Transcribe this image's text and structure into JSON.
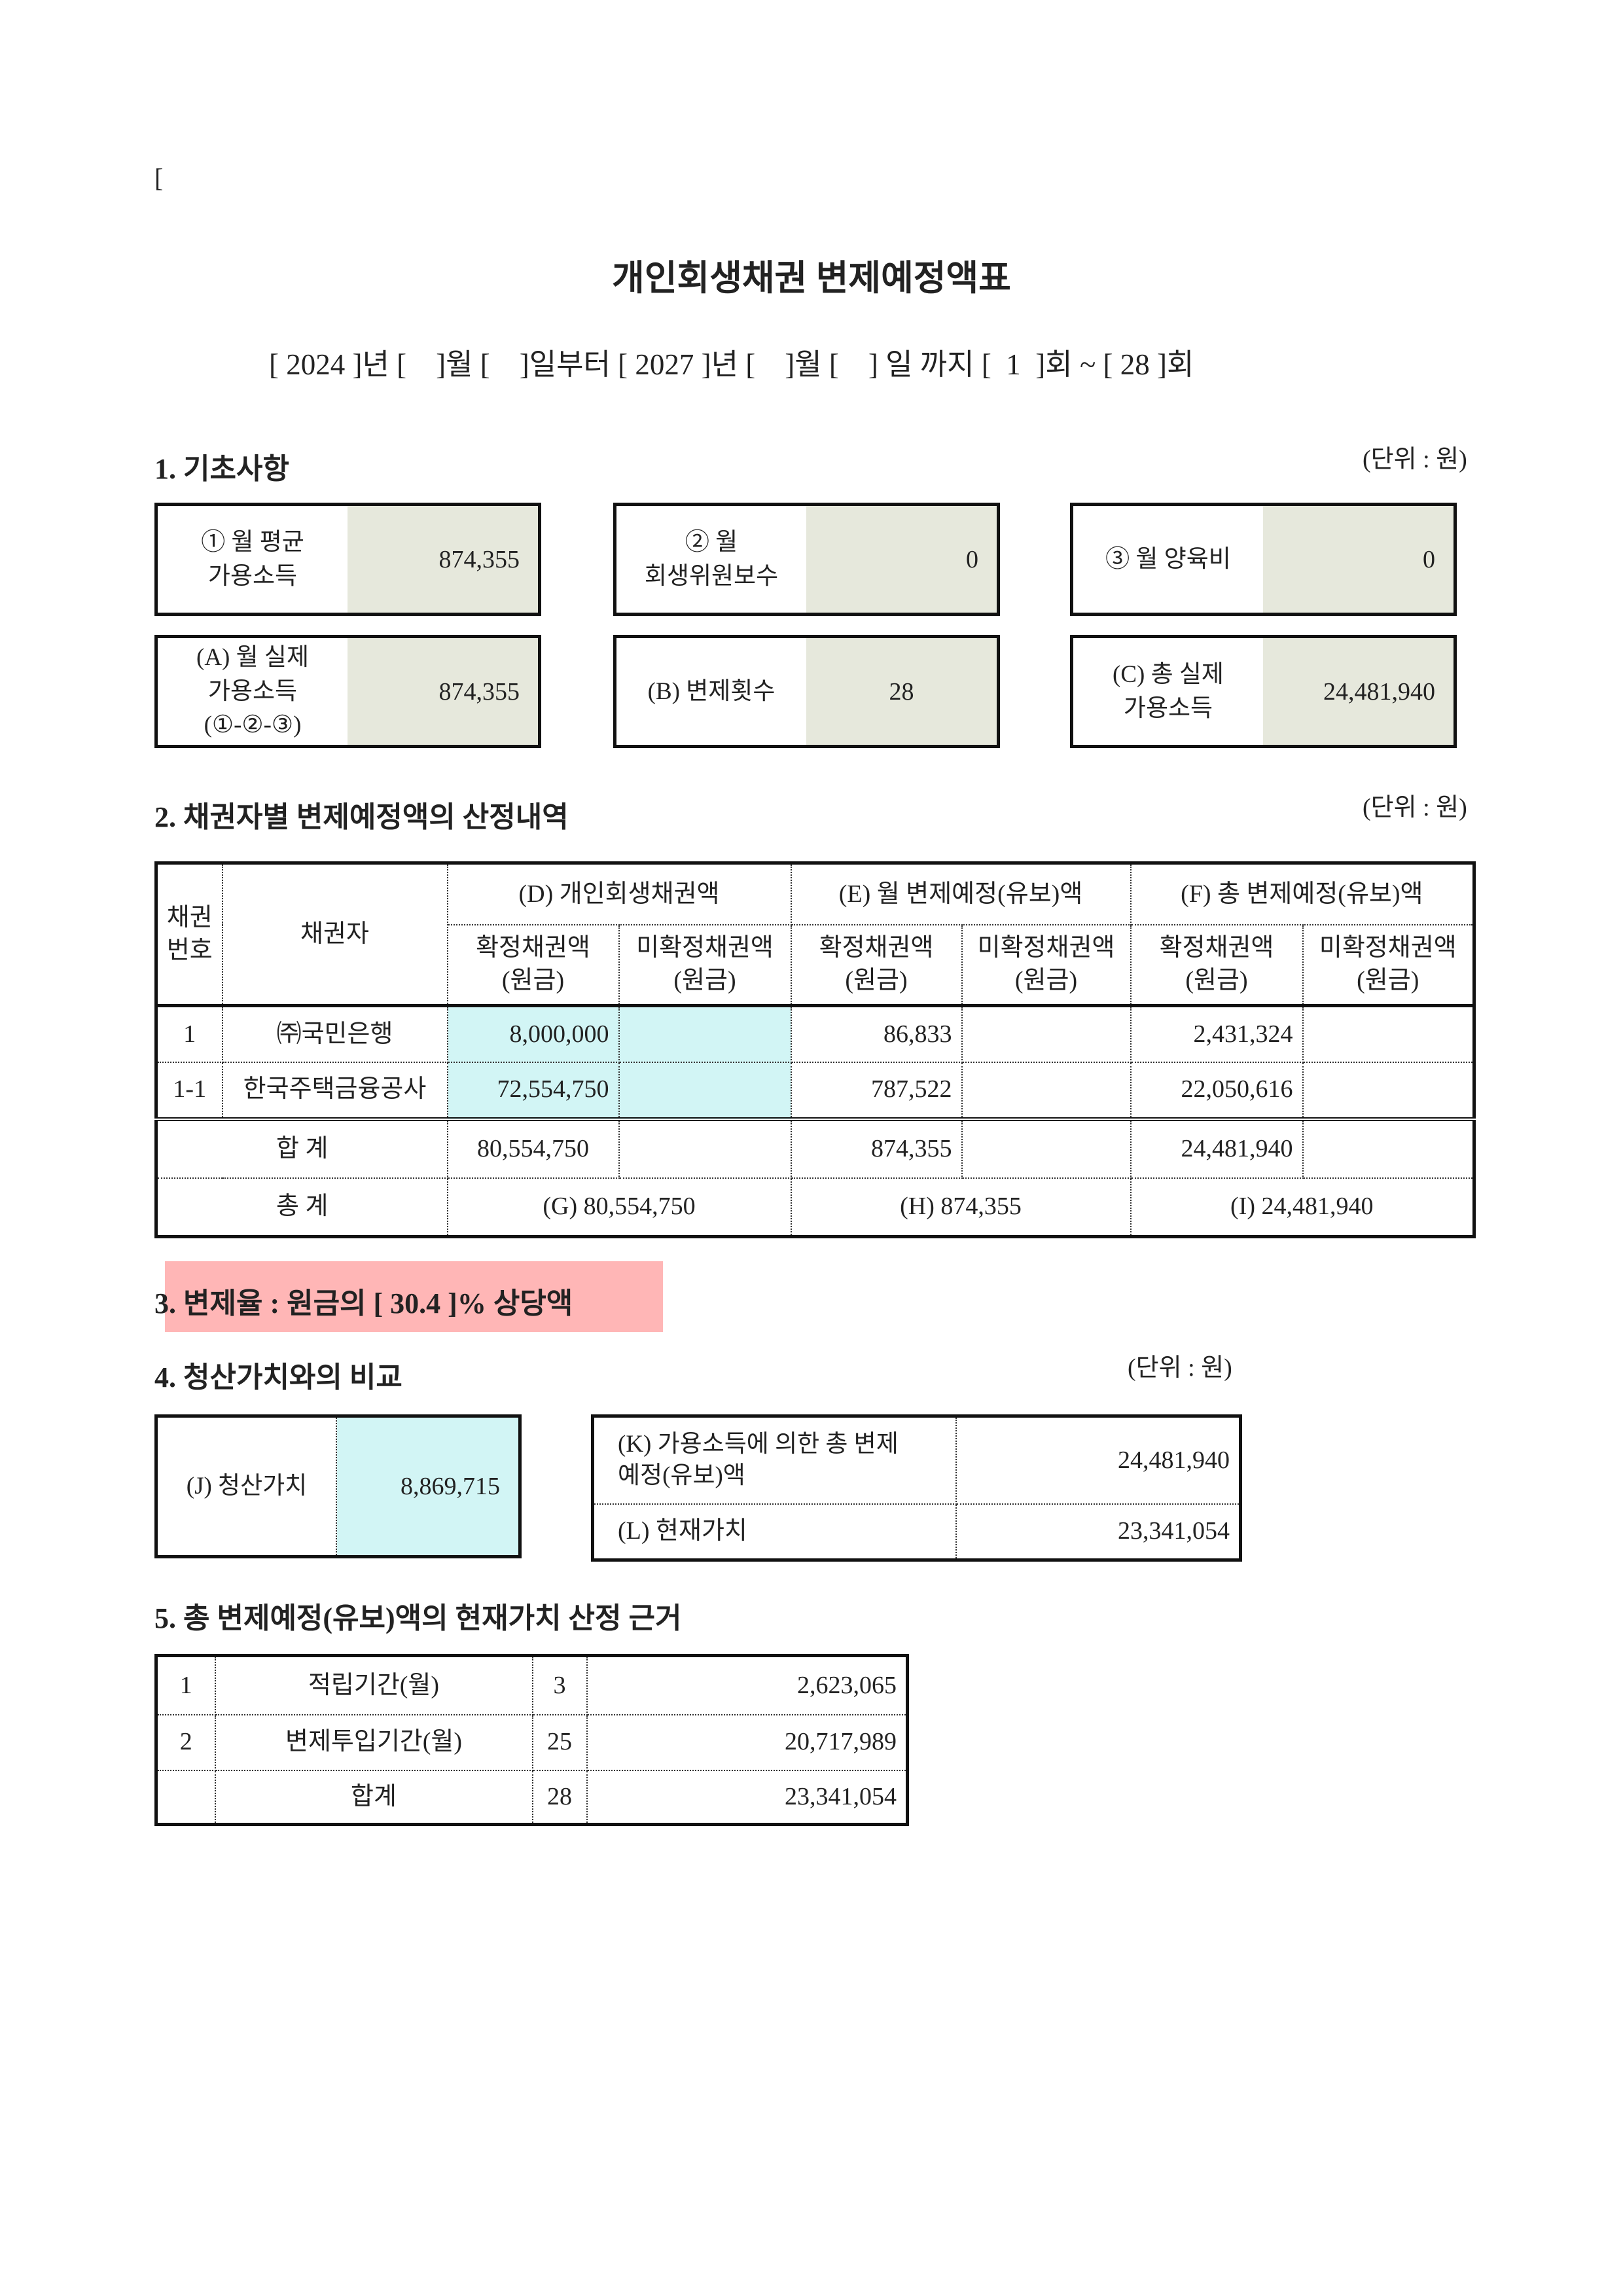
{
  "bracket_mark": "[",
  "title": "개인회생채권 변제예정액표",
  "date_line": "[ 2024 ]년 [    ]월 [    ]일부터 [ 2027 ]년 [    ]월 [    ] 일 까지 [  1  ]회 ~ [ 28 ]회",
  "unit": "(단위 : 원)",
  "section1": {
    "heading": "1. 기초사항",
    "boxes": [
      {
        "label": "① 월 평균\n가용소득",
        "value": "874,355"
      },
      {
        "label": "② 월\n회생위원보수",
        "value": "0"
      },
      {
        "label": "③ 월 양육비",
        "value": "0"
      },
      {
        "label": "(A) 월 실제\n가용소득\n(①-②-③)",
        "value": "874,355"
      },
      {
        "label": "(B) 변제횟수",
        "value": "28"
      },
      {
        "label": "(C) 총 실제\n가용소득",
        "value": "24,481,940"
      }
    ]
  },
  "section2": {
    "heading": "2. 채권자별 변제예정액의 산정내역",
    "headers": {
      "no": "채권\n번호",
      "creditor": "채권자",
      "d": "(D) 개인회생채권액",
      "e": "(E) 월 변제예정(유보)액",
      "f": "(F) 총 변제예정(유보)액",
      "confirmed": "확정채권액\n(원금)",
      "unconfirmed": "미확정채권액\n(원금)"
    },
    "rows": [
      {
        "no": "1",
        "creditor": "㈜국민은행",
        "d1": "8,000,000",
        "d2": "",
        "e1": "86,833",
        "e2": "",
        "f1": "2,431,324",
        "f2": ""
      },
      {
        "no": "1-1",
        "creditor": "한국주택금융공사",
        "d1": "72,554,750",
        "d2": "",
        "e1": "787,522",
        "e2": "",
        "f1": "22,050,616",
        "f2": ""
      }
    ],
    "sum": {
      "label": "합 계",
      "d1": "80,554,750",
      "e1": "874,355",
      "f1": "24,481,940"
    },
    "total": {
      "label": "총 계",
      "g": "(G) 80,554,750",
      "h": "(H) 874,355",
      "i": "(I) 24,481,940"
    }
  },
  "section3": {
    "heading": "3. 변제율 : 원금의 [ 30.4 ]% 상당액",
    "highlight_color": "#ffb6b6"
  },
  "section4": {
    "heading": "4. 청산가치와의 비교",
    "j_label": "(J) 청산가치",
    "j_value": "8,869,715",
    "k_label": "(K) 가용소득에 의한 총 변제\n예정(유보)액",
    "k_value": "24,481,940",
    "l_label": "(L) 현재가치",
    "l_value": "23,341,054"
  },
  "section5": {
    "heading": "5. 총 변제예정(유보)액의 현재가치 산정 근거",
    "rows": [
      {
        "no": "1",
        "label": "적립기간(월)",
        "months": "3",
        "amount": "2,623,065"
      },
      {
        "no": "2",
        "label": "변제투입기간(월)",
        "months": "25",
        "amount": "20,717,989"
      },
      {
        "no": "",
        "label": "합계",
        "months": "28",
        "amount": "23,341,054"
      }
    ]
  },
  "colors": {
    "value_bg": "#e6e8dc",
    "cyan": "#d2f5f5"
  }
}
